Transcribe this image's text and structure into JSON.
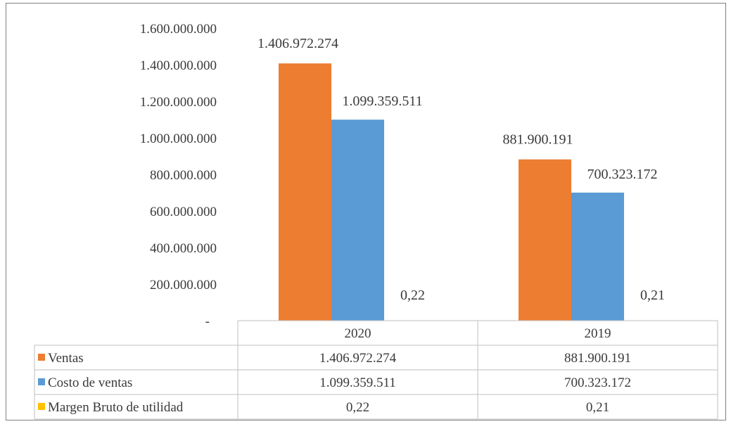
{
  "chart_data": {
    "type": "bar",
    "categories": [
      "2020",
      "2019"
    ],
    "series": [
      {
        "name": "Ventas",
        "values": [
          1406972274,
          881900191
        ],
        "labels": [
          "1.406.972.274",
          "881.900.191"
        ],
        "color": "#ED7D31"
      },
      {
        "name": "Costo de ventas",
        "values": [
          1099359511,
          700323172
        ],
        "labels": [
          "1.099.359.511",
          "700.323.172"
        ],
        "color": "#5B9BD5"
      },
      {
        "name": "Margen Bruto de utilidad",
        "values": [
          0.22,
          0.21
        ],
        "labels": [
          "0,22",
          "0,21"
        ],
        "color": "#FFC000"
      }
    ],
    "ylim": [
      0,
      1600000000
    ],
    "y_ticks": [
      0,
      200000000,
      400000000,
      600000000,
      800000000,
      1000000000,
      1200000000,
      1400000000,
      1600000000
    ],
    "y_tick_labels": [
      "-",
      "200.000.000",
      "400.000.000",
      "600.000.000",
      "800.000.000",
      "1.000.000.000",
      "1.200.000.000",
      "1.400.000.000",
      "1.600.000.000"
    ],
    "grid": false,
    "legend": "data-table"
  }
}
